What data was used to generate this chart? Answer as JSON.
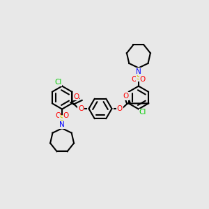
{
  "bg_color": "#e8e8e8",
  "bond_color": "#000000",
  "colors": {
    "N": "#0000ff",
    "O": "#ff0000",
    "S": "#cccc00",
    "Cl": "#00cc00",
    "C": "#000000"
  },
  "linewidth": 1.5,
  "fontsize": 7.5
}
